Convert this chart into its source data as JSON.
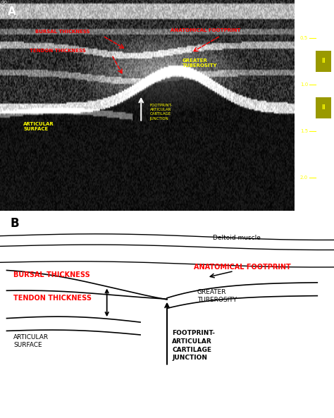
{
  "panel_a_label": "A",
  "panel_b_label": "B",
  "bg_color_a": "#111111",
  "bg_color_b": "#ffffff",
  "label_color_red": "#ff0000",
  "label_color_yellow": "#ffff00",
  "label_color_black": "#000000",
  "label_color_white": "#ffffff",
  "bursal_thickness": "BURSAL THICKNESS",
  "tendon_thickness": "TENDON THICKNESS",
  "anatomical_footprint": "ANATOMICAL FOOTPRINT",
  "greater_tuberosity": "GREATER\nTUBEROSITY",
  "articular_surface": "ARTICULAR\nSURFACE",
  "footprint_junction": "FOOTPRINT-\nARTICULAR\nCARTILAGE\nJUNCTION",
  "deltoid_muscle": "Deltoid muscle",
  "fig_width": 4.74,
  "fig_height": 5.93
}
